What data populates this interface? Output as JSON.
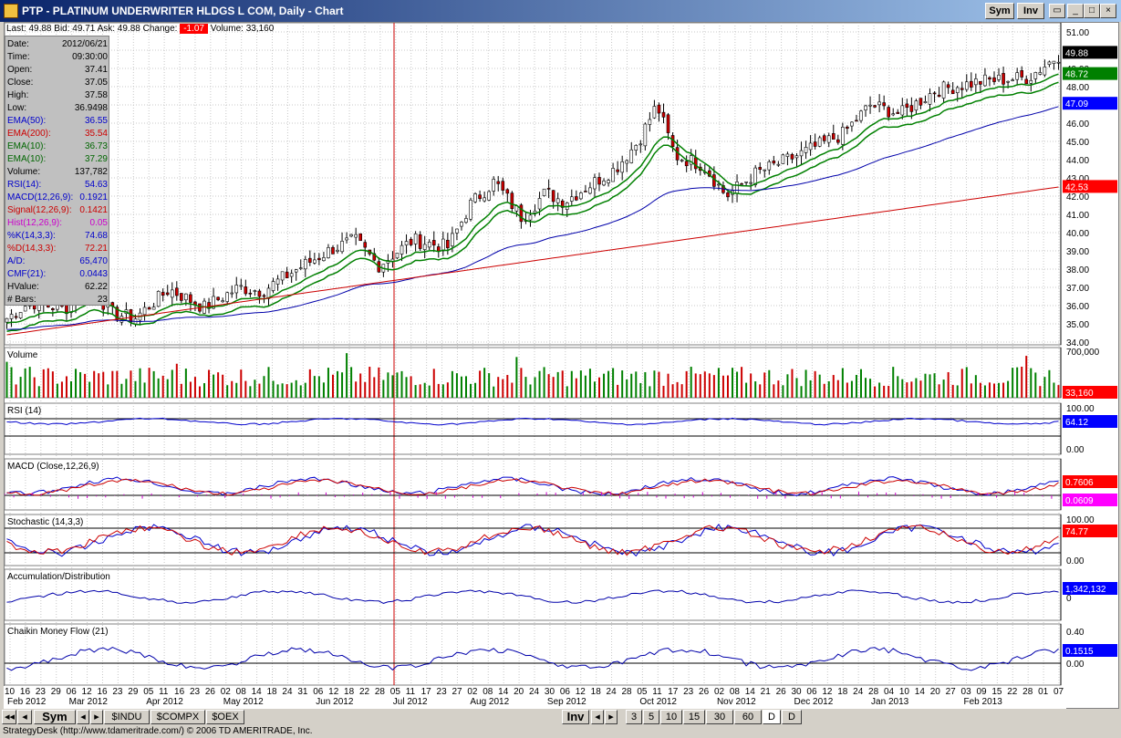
{
  "window": {
    "title": "PTP - PLATINUM UNDERWRITER HLDGS L COM, Daily - Chart",
    "sym_btn": "Sym",
    "inv_btn": "Inv",
    "min_btn": "_",
    "max_btn": "□",
    "close_btn": "×"
  },
  "quote": {
    "last_label": "Last:",
    "last": "49.88",
    "bid_label": "Bid:",
    "bid": "49.71",
    "ask_label": "Ask:",
    "ask": "49.88",
    "change_label": "Change:",
    "change": "-1.07",
    "volume_label": "Volume:",
    "volume": "33,160"
  },
  "info": [
    {
      "k": "Date:",
      "v": "2012/06/21",
      "color": "#000000"
    },
    {
      "k": "Time:",
      "v": "09:30:00",
      "color": "#000000"
    },
    {
      "k": "Open:",
      "v": "37.41",
      "color": "#000000"
    },
    {
      "k": "Close:",
      "v": "37.05",
      "color": "#000000"
    },
    {
      "k": "High:",
      "v": "37.58",
      "color": "#000000"
    },
    {
      "k": "Low:",
      "v": "36.9498",
      "color": "#000000"
    },
    {
      "k": "EMA(50):",
      "v": "36.55",
      "color": "#0000cc"
    },
    {
      "k": "EMA(200):",
      "v": "35.54",
      "color": "#cc0000"
    },
    {
      "k": "EMA(10):",
      "v": "36.73",
      "color": "#006600"
    },
    {
      "k": "EMA(10):",
      "v": "37.29",
      "color": "#006600"
    },
    {
      "k": "Volume:",
      "v": "137,782",
      "color": "#000000"
    },
    {
      "k": "RSI(14):",
      "v": "54.63",
      "color": "#0000cc"
    },
    {
      "k": "MACD(12,26,9):",
      "v": "0.1921",
      "color": "#0000cc"
    },
    {
      "k": "Signal(12,26,9):",
      "v": "0.1421",
      "color": "#cc0000"
    },
    {
      "k": "Hist(12,26,9):",
      "v": "0.05",
      "color": "#cc00cc"
    },
    {
      "k": "%K(14,3,3):",
      "v": "74.68",
      "color": "#0000cc"
    },
    {
      "k": "%D(14,3,3):",
      "v": "72.21",
      "color": "#cc0000"
    },
    {
      "k": "A/D:",
      "v": "65,470",
      "color": "#0000cc"
    },
    {
      "k": "CMF(21):",
      "v": "0.0443",
      "color": "#0000cc"
    },
    {
      "k": "HValue:",
      "v": "62.22",
      "color": "#000000"
    },
    {
      "k": "# Bars:",
      "v": "23",
      "color": "#000000"
    }
  ],
  "price_axis": [
    "51.00",
    "50.00",
    "49.00",
    "48.00",
    "47.00",
    "46.00",
    "45.00",
    "44.00",
    "43.00",
    "42.00",
    "41.00",
    "40.00",
    "39.00",
    "38.00",
    "37.00",
    "36.00",
    "35.00",
    "34.00"
  ],
  "price_tags": [
    {
      "v": "49.88",
      "bg": "#000000"
    },
    {
      "v": "48.72",
      "bg": "#008000"
    },
    {
      "v": "47.09",
      "bg": "#0000ff"
    },
    {
      "v": "42.53",
      "bg": "#ff0000"
    }
  ],
  "panels": {
    "volume": {
      "label": "Volume",
      "top_value": "700,000",
      "tag": "33,160"
    },
    "rsi": {
      "label": "RSI (14)",
      "top_value": "100.00",
      "tag": "64.12",
      "bottom_value": "0.00"
    },
    "macd": {
      "label": "MACD (Close,12,26,9)",
      "tag1": "0.7606",
      "tag2": "0.0609"
    },
    "stoch": {
      "label": "Stochastic (14,3,3)",
      "top_value": "100.00",
      "tag": "74.77",
      "bottom_value": "0.00"
    },
    "ad": {
      "label": "Accumulation/Distribution",
      "tag": "1,342,132",
      "bottom_value": "0"
    },
    "cmf": {
      "label": "Chaikin Money Flow (21)",
      "top_value": "0.40",
      "tag": "0.1515",
      "bottom_value": "0.00"
    }
  },
  "x_ticks": [
    "10",
    "16",
    "23",
    "29",
    "06",
    "12",
    "16",
    "23",
    "29",
    "05",
    "11",
    "16",
    "23",
    "26",
    "02",
    "08",
    "14",
    "18",
    "24",
    "31",
    "06",
    "12",
    "18",
    "22",
    "28",
    "05",
    "11",
    "17",
    "23",
    "27",
    "02",
    "08",
    "14",
    "20",
    "24",
    "30",
    "06",
    "12",
    "18",
    "24",
    "28",
    "05",
    "11",
    "17",
    "23",
    "26",
    "02",
    "08",
    "14",
    "21",
    "26",
    "30",
    "06",
    "12",
    "18",
    "24",
    "28",
    "04",
    "10",
    "14",
    "20",
    "27",
    "03",
    "09",
    "15",
    "22",
    "28",
    "01",
    "07"
  ],
  "x_months": [
    "Feb 2012",
    "Mar 2012",
    "Apr 2012",
    "May 2012",
    "Jun 2012",
    "Jul 2012",
    "Aug 2012",
    "Sep 2012",
    "Oct 2012",
    "Nov 2012",
    "Dec 2012",
    "Jan 2013",
    "Feb 2013"
  ],
  "bottom_tabs": {
    "sym": "Sym",
    "tabs": [
      "$INDU",
      "$COMPX",
      "$OEX"
    ],
    "inv": "Inv",
    "periods": [
      "3",
      "5",
      "10",
      "15",
      "30",
      "60",
      "D",
      "D"
    ]
  },
  "status": "StrategyDesk (http://www.tdameritrade.com/) © 2006 TD AMERITRADE, Inc."
}
